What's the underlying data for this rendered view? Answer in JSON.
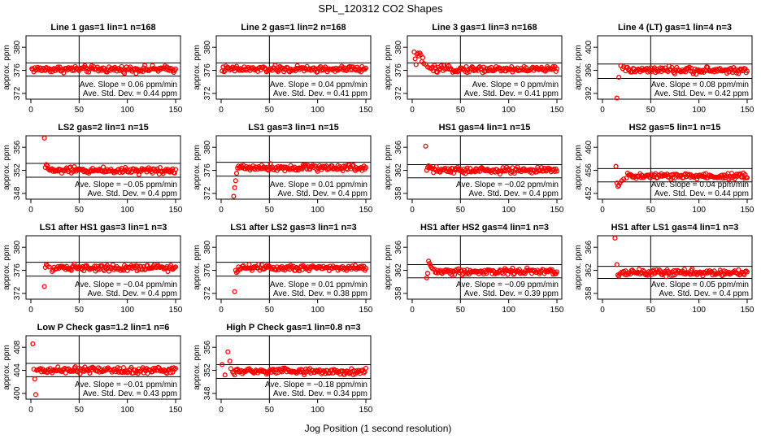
{
  "figure": {
    "title": "SPL_120312  CO2 Shapes",
    "xlabel": "Jog Position (1 second resolution)"
  },
  "chart_data": [
    {
      "type": "scatter",
      "title": "Line 1 gas=1 lin=1 n=168",
      "ylabel": "approx. ppm",
      "xlim": [
        0,
        150
      ],
      "ylim": [
        371,
        382
      ],
      "xticks": [
        0,
        50,
        100,
        150
      ],
      "yticks": [
        372,
        376,
        380
      ],
      "vline": 50,
      "hlines": [
        377.3,
        375.0
      ],
      "level": 376.2,
      "slope": "Ave. Slope = 0.06  ppm/min",
      "std": "Ave. Std. Dev. = 0.44  ppm",
      "points": []
    },
    {
      "type": "scatter",
      "title": "Line 2 gas=1 lin=2 n=168",
      "ylabel": "approx. ppm",
      "xlim": [
        0,
        150
      ],
      "ylim": [
        371,
        382
      ],
      "xticks": [
        0,
        50,
        100,
        150
      ],
      "yticks": [
        372,
        376,
        380
      ],
      "vline": 50,
      "hlines": [
        377.3,
        375.0
      ],
      "level": 376.2,
      "slope": "Ave. Slope = 0.04  ppm/min",
      "std": "Ave. Std. Dev. = 0.41  ppm",
      "points": []
    },
    {
      "type": "scatter",
      "title": "Line 3 gas=1 lin=3 n=168",
      "ylabel": "approx. ppm",
      "xlim": [
        0,
        150
      ],
      "ylim": [
        371,
        382
      ],
      "xticks": [
        0,
        50,
        100,
        150
      ],
      "yticks": [
        372,
        376,
        380
      ],
      "vline": 50,
      "hlines": [
        377.3,
        375.0
      ],
      "level": 376.2,
      "slope": "Ave. Slope = 0  ppm/min",
      "std": "Ave. Std. Dev. = 0.41  ppm",
      "points": [
        [
          2,
          379.2
        ],
        [
          3,
          378.0
        ],
        [
          4,
          377.0
        ],
        [
          5,
          378.8
        ],
        [
          6,
          379.0
        ],
        [
          7,
          378.5
        ],
        [
          8,
          379.0
        ],
        [
          9,
          378.7
        ],
        [
          10,
          377.5
        ],
        [
          11,
          378.2
        ],
        [
          12,
          377.2
        ],
        [
          14,
          377.0
        ],
        [
          16,
          376.6
        ],
        [
          18,
          376.4
        ],
        [
          20,
          376.3
        ]
      ]
    },
    {
      "type": "scatter",
      "title": "Line 4 (LT) gas=1 lin=4 n=3",
      "ylabel": "approx. ppm",
      "xlim": [
        0,
        150
      ],
      "ylim": [
        391,
        402
      ],
      "xticks": [
        0,
        50,
        100,
        150
      ],
      "yticks": [
        392,
        396,
        400
      ],
      "vline": 50,
      "hlines": [
        397.1,
        394.6
      ],
      "level": 396.0,
      "slope": "Ave. Slope = 0.08  ppm/min",
      "std": "Ave. Std. Dev. = 0.42  ppm",
      "points": [
        [
          15,
          391.2
        ],
        [
          17,
          394.8
        ],
        [
          19,
          396.8
        ],
        [
          21,
          396.3
        ],
        [
          22,
          396.6
        ],
        [
          24,
          395.9
        ],
        [
          25,
          396.5
        ]
      ]
    },
    {
      "type": "scatter",
      "title": "LS2 gas=2 lin=1 n=15",
      "ylabel": "approx. ppm",
      "xlim": [
        0,
        150
      ],
      "ylim": [
        347,
        358
      ],
      "xticks": [
        0,
        50,
        100,
        150
      ],
      "yticks": [
        348,
        352,
        356
      ],
      "vline": 50,
      "hlines": [
        353.2,
        350.8
      ],
      "level": 352.0,
      "slope": "Ave. Slope = −0.05  ppm/min",
      "std": "Ave. Std. Dev. = 0.4  ppm",
      "points": [
        [
          14,
          357.6
        ],
        [
          15,
          352.5
        ],
        [
          16,
          353.0
        ],
        [
          17,
          352.8
        ],
        [
          18,
          352.3
        ]
      ]
    },
    {
      "type": "scatter",
      "title": "LS1 gas=3 lin=1 n=15",
      "ylabel": "approx. ppm",
      "xlim": [
        0,
        150
      ],
      "ylim": [
        371,
        382
      ],
      "xticks": [
        0,
        50,
        100,
        150
      ],
      "yticks": [
        372,
        376,
        380
      ],
      "vline": 50,
      "hlines": [
        377.4,
        375.0
      ],
      "level": 376.5,
      "slope": "Ave. Slope = 0.01  ppm/min",
      "std": "Ave. Std. Dev. = 0.4  ppm",
      "points": [
        [
          13,
          371.5
        ],
        [
          14,
          373.0
        ],
        [
          15,
          374.2
        ],
        [
          16,
          375.5
        ],
        [
          17,
          376.4
        ]
      ]
    },
    {
      "type": "scatter",
      "title": "HS1 gas=4 lin=1 n=15",
      "ylabel": "approx. ppm",
      "xlim": [
        0,
        150
      ],
      "ylim": [
        357,
        368
      ],
      "xticks": [
        0,
        50,
        100,
        150
      ],
      "yticks": [
        358,
        362,
        366
      ],
      "vline": 50,
      "hlines": [
        363.0,
        360.7
      ],
      "level": 362.0,
      "slope": "Ave. Slope = −0.02  ppm/min",
      "std": "Ave. Std. Dev. = 0.4  ppm",
      "points": [
        [
          14,
          366.2
        ],
        [
          15,
          362.0
        ],
        [
          16,
          362.5
        ],
        [
          17,
          362.8
        ],
        [
          18,
          362.4
        ],
        [
          19,
          362.6
        ]
      ]
    },
    {
      "type": "scatter",
      "title": "HS2 gas=5 lin=1 n=15",
      "ylabel": "approx. ppm",
      "xlim": [
        0,
        150
      ],
      "ylim": [
        451,
        462
      ],
      "xticks": [
        0,
        50,
        100,
        150
      ],
      "yticks": [
        452,
        456,
        460
      ],
      "vline": 50,
      "hlines": [
        456.3,
        454.0
      ],
      "level": 455.0,
      "slope": "Ave. Slope = 0.04  ppm/min",
      "std": "Ave. Std. Dev. = 0.44  ppm",
      "points": [
        [
          14,
          456.7
        ],
        [
          15,
          453.8
        ],
        [
          16,
          453.2
        ],
        [
          17,
          453.4
        ],
        [
          18,
          453.8
        ],
        [
          20,
          454.2
        ],
        [
          22,
          454.5
        ],
        [
          25,
          454.7
        ]
      ]
    },
    {
      "type": "scatter",
      "title": "LS1 after HS1 gas=3 lin=1 n=3",
      "ylabel": "approx. ppm",
      "xlim": [
        0,
        150
      ],
      "ylim": [
        371,
        382
      ],
      "xticks": [
        0,
        50,
        100,
        150
      ],
      "yticks": [
        372,
        376,
        380
      ],
      "vline": 50,
      "hlines": [
        377.4,
        375.0
      ],
      "level": 376.5,
      "slope": "Ave. Slope = −0.04  ppm/min",
      "std": "Ave. Std. Dev. = 0.4  ppm",
      "points": [
        [
          14,
          373.2
        ],
        [
          15,
          376.5
        ],
        [
          16,
          377.0
        ],
        [
          17,
          376.8
        ],
        [
          19,
          376.6
        ],
        [
          22,
          375.8
        ]
      ]
    },
    {
      "type": "scatter",
      "title": "LS1 after LS2 gas=3 lin=1 n=3",
      "ylabel": "approx. ppm",
      "xlim": [
        0,
        150
      ],
      "ylim": [
        371,
        382
      ],
      "xticks": [
        0,
        50,
        100,
        150
      ],
      "yticks": [
        372,
        376,
        380
      ],
      "vline": 50,
      "hlines": [
        377.4,
        375.0
      ],
      "level": 376.5,
      "slope": "Ave. Slope = 0.01  ppm/min",
      "std": "Ave. Std. Dev. = 0.38  ppm",
      "points": [
        [
          14,
          372.3
        ],
        [
          15,
          376.0
        ],
        [
          16,
          375.6
        ],
        [
          17,
          375.8
        ],
        [
          18,
          376.6
        ],
        [
          19,
          376.2
        ]
      ]
    },
    {
      "type": "scatter",
      "title": "HS1 after HS2 gas=4 lin=1 n=3",
      "ylabel": "approx. ppm",
      "xlim": [
        0,
        150
      ],
      "ylim": [
        357,
        368
      ],
      "xticks": [
        0,
        50,
        100,
        150
      ],
      "yticks": [
        358,
        362,
        366
      ],
      "vline": 50,
      "hlines": [
        363.0,
        360.7
      ],
      "level": 361.8,
      "slope": "Ave. Slope = −0.09  ppm/min",
      "std": "Ave. Std. Dev. = 0.39  ppm",
      "points": [
        [
          15,
          360.7
        ],
        [
          16,
          361.5
        ],
        [
          17,
          363.6
        ],
        [
          18,
          363.2
        ],
        [
          19,
          362.8
        ],
        [
          20,
          362.5
        ],
        [
          21,
          362.3
        ],
        [
          23,
          362.2
        ]
      ]
    },
    {
      "type": "scatter",
      "title": "HS1 after LS1 gas=4 lin=1 n=3",
      "ylabel": "approx. ppm",
      "xlim": [
        0,
        150
      ],
      "ylim": [
        357,
        368
      ],
      "xticks": [
        0,
        50,
        100,
        150
      ],
      "yticks": [
        358,
        362,
        366
      ],
      "vline": 50,
      "hlines": [
        362.7,
        360.6
      ],
      "level": 361.6,
      "slope": "Ave. Slope = 0.05  ppm/min",
      "std": "Ave. Std. Dev. = 0.4  ppm",
      "points": [
        [
          13,
          367.6
        ],
        [
          15,
          363.0
        ],
        [
          16,
          361.2
        ],
        [
          17,
          361.0
        ],
        [
          18,
          361.4
        ],
        [
          20,
          361.7
        ]
      ]
    },
    {
      "type": "scatter",
      "title": "Low P Check gas=1.2 lin=1 n=6",
      "ylabel": "approx. ppm",
      "xlim": [
        0,
        150
      ],
      "ylim": [
        399,
        410
      ],
      "xticks": [
        0,
        50,
        100,
        150
      ],
      "yticks": [
        400,
        404,
        408
      ],
      "vline": 50,
      "hlines": [
        405.2,
        402.9
      ],
      "level": 404.0,
      "slope": "Ave. Slope = −0.01  ppm/min",
      "std": "Ave. Std. Dev. = 0.43  ppm",
      "points": [
        [
          2,
          408.6
        ],
        [
          3,
          404.2
        ],
        [
          4,
          402.5
        ],
        [
          5,
          399.8
        ],
        [
          6,
          404.0
        ]
      ]
    },
    {
      "type": "scatter",
      "title": "High P Check gas=1 lin=0.8 n=3",
      "ylabel": "approx. ppm",
      "xlim": [
        0,
        150
      ],
      "ylim": [
        347,
        358
      ],
      "xticks": [
        0,
        50,
        100,
        150
      ],
      "yticks": [
        348,
        352,
        356
      ],
      "vline": 50,
      "hlines": [
        353.0,
        350.6
      ],
      "level": 351.8,
      "slope": "Ave. Slope = −0.18  ppm/min",
      "std": "Ave. Std. Dev. = 0.34  ppm",
      "points": [
        [
          1,
          353.0
        ],
        [
          4,
          351.2
        ],
        [
          7,
          355.2
        ],
        [
          9,
          353.6
        ],
        [
          10,
          352.3
        ],
        [
          12,
          351.7
        ]
      ]
    }
  ],
  "colors": {
    "point": "#ff0000",
    "line": "#000000",
    "background": "#ffffff"
  }
}
